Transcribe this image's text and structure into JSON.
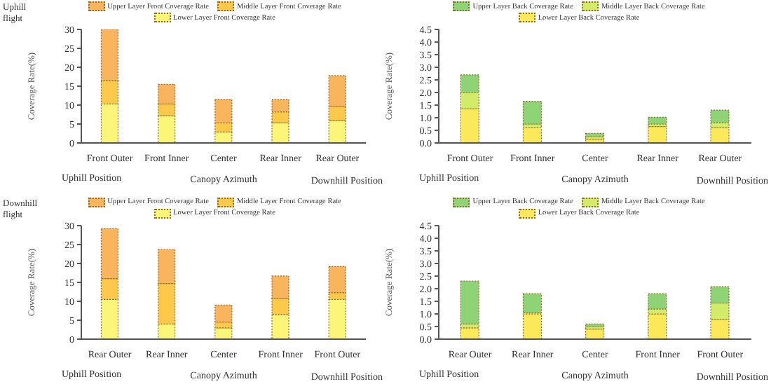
{
  "chart_data": [
    {
      "type": "bar",
      "stacked": true,
      "ylabel": "Coverage Rate(%)",
      "xlabel": "Canopy Azimuth",
      "annotations": [
        "Uphill flight",
        "Uphill Position",
        "Downhill Position"
      ],
      "legend": "top",
      "categories": [
        "Front Outer",
        "Front Inner",
        "Center",
        "Rear Inner",
        "Rear Outer"
      ],
      "ylim": [
        0,
        30
      ],
      "yticks": [
        0,
        5,
        10,
        15,
        20,
        25,
        30
      ],
      "series": [
        {
          "name": "Lower Layer Front Coverage Rate",
          "color": "#fbf57a",
          "values": [
            10.3,
            7.2,
            2.9,
            5.3,
            5.9
          ]
        },
        {
          "name": "Middle Layer Front Coverage Rate",
          "color": "#fdc94b",
          "values": [
            6.2,
            3.1,
            2.4,
            2.9,
            3.7
          ]
        },
        {
          "name": "Upper Layer Front Coverage Rate",
          "color": "#f9b45e",
          "values": [
            13.5,
            5.2,
            6.2,
            3.3,
            8.2
          ]
        }
      ]
    },
    {
      "type": "bar",
      "stacked": true,
      "ylabel": "Coverage Rate(%)",
      "xlabel": "Canopy Azimuth",
      "annotations": [
        "Uphill Position",
        "Downhill Position"
      ],
      "legend": "top",
      "categories": [
        "Front Outer",
        "Front Inner",
        "Center",
        "Rear Inner",
        "Rear Outer"
      ],
      "ylim": [
        0,
        4.5
      ],
      "yticks": [
        {
          "value": 0,
          "label": "0.0"
        },
        0.5,
        {
          "value": 1,
          "label": "1.0"
        },
        1.5,
        {
          "value": 2,
          "label": "2.0"
        },
        2.5,
        {
          "value": 3,
          "label": "3.0"
        },
        3.5,
        {
          "value": 4,
          "label": "4.0"
        },
        4.5
      ],
      "series": [
        {
          "name": "Lower Layer Back Coverage Rate",
          "color": "#fbe95a",
          "values": [
            1.35,
            0.6,
            0.15,
            0.65,
            0.6
          ]
        },
        {
          "name": "Middle Layer Back Coverage Rate",
          "color": "#d2ec6a",
          "values": [
            0.65,
            0.15,
            0.1,
            0.1,
            0.2
          ]
        },
        {
          "name": "Upper Layer Back Coverage Rate",
          "color": "#8ed476",
          "values": [
            0.7,
            0.9,
            0.13,
            0.27,
            0.5
          ]
        }
      ]
    },
    {
      "type": "bar",
      "stacked": true,
      "ylabel": "Coverage Rate(%)",
      "xlabel": "Canopy Azimuth",
      "annotations": [
        "Downhill flight",
        "Uphill Position",
        "Downhill Position"
      ],
      "legend": "top",
      "categories": [
        "Rear Outer",
        "Rear Inner",
        "Center",
        "Front Inner",
        "Front Outer"
      ],
      "ylim": [
        0,
        30
      ],
      "yticks": [
        0,
        5,
        10,
        15,
        20,
        25,
        30
      ],
      "series": [
        {
          "name": "Lower Layer Front Coverage Rate",
          "color": "#fbf57a",
          "values": [
            10.5,
            4,
            3,
            6.5,
            10.5
          ]
        },
        {
          "name": "Middle Layer Front Coverage Rate",
          "color": "#fdc94b",
          "values": [
            5.5,
            10.7,
            1.5,
            4.2,
            1.8
          ]
        },
        {
          "name": "Upper Layer Front Coverage Rate",
          "color": "#f9b45e",
          "values": [
            13.2,
            9,
            4.5,
            6,
            6.9
          ]
        }
      ]
    },
    {
      "type": "bar",
      "stacked": true,
      "ylabel": "Coverage Rate(%)",
      "xlabel": "Canopy Azimuth",
      "annotations": [
        "Uphill Position",
        "Downhill Position"
      ],
      "legend": "top",
      "categories": [
        "Rear Outer",
        "Rear Inner",
        "Center",
        "Front Inner",
        "Front Outer"
      ],
      "ylim": [
        0,
        4.5
      ],
      "yticks": [
        {
          "value": 0,
          "label": "0.0"
        },
        0.5,
        {
          "value": 1,
          "label": "1.0"
        },
        1.5,
        {
          "value": 2,
          "label": "2.0"
        },
        2.5,
        {
          "value": 3,
          "label": "3.0"
        },
        3.5,
        {
          "value": 4,
          "label": "4.0"
        },
        4.5
      ],
      "series": [
        {
          "name": "Lower Layer Back Coverage Rate",
          "color": "#fbe95a",
          "values": [
            0.45,
            1.0,
            0.4,
            1.0,
            0.78
          ]
        },
        {
          "name": "Middle Layer Back Coverage Rate",
          "color": "#d2ec6a",
          "values": [
            0.15,
            0.05,
            0.1,
            0.2,
            0.65
          ]
        },
        {
          "name": "Upper Layer Back Coverage Rate",
          "color": "#8ed476",
          "values": [
            1.7,
            0.75,
            0.1,
            0.6,
            0.65
          ]
        }
      ]
    }
  ]
}
